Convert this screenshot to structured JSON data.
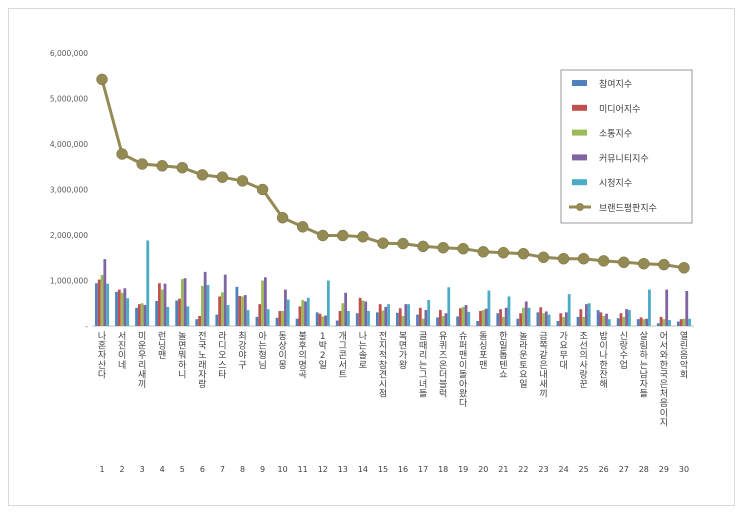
{
  "chart_data": {
    "type": "bar",
    "title": "",
    "xlabel": "",
    "ylabel": "",
    "ylim": [
      0,
      6000000
    ],
    "yticks": [
      "-",
      "1,000,000",
      "2,000,000",
      "3,000,000",
      "4,000,000",
      "5,000,000",
      "6,000,000"
    ],
    "grid": false,
    "legend_position": "top-right",
    "categories": [
      "나혼자산다",
      "서진이네",
      "미운우리새끼",
      "런닝맨",
      "놀면뭐하니",
      "전국노래자랑",
      "라디오스타",
      "최강야구",
      "아는형님",
      "동상이몽",
      "불후의명곡",
      "1박2일",
      "개그콘서트",
      "나는솔로",
      "전지적참견시점",
      "복면가왕",
      "골때리는그녀들",
      "유퀴즈온더블럭",
      "슈퍼맨이돌아왔다",
      "돌싱포맨",
      "한일톱텐쇼",
      "놀라운토요일",
      "금쪽같은내새끼",
      "가요무대",
      "조선의사랑꾼",
      "밥이나한잔해",
      "신랑수업",
      "살림하는남자들",
      "어서와한국은처음이지",
      "열린음악회"
    ],
    "numbers": [
      "1",
      "2",
      "3",
      "4",
      "5",
      "6",
      "7",
      "8",
      "9",
      "10",
      "11",
      "12",
      "13",
      "14",
      "15",
      "16",
      "17",
      "18",
      "19",
      "20",
      "21",
      "22",
      "23",
      "24",
      "25",
      "26",
      "27",
      "28",
      "29",
      "30"
    ],
    "series": [
      {
        "name": "참여지수",
        "color": "#4f81bd",
        "values": [
          940000,
          750000,
          400000,
          550000,
          560000,
          150000,
          250000,
          860000,
          200000,
          180000,
          160000,
          300000,
          120000,
          280000,
          300000,
          290000,
          250000,
          190000,
          210000,
          110000,
          280000,
          160000,
          300000,
          110000,
          200000,
          350000,
          170000,
          150000,
          60000,
          100000
        ]
      },
      {
        "name": "미디어지수",
        "color": "#c0504d",
        "values": [
          1020000,
          800000,
          480000,
          940000,
          600000,
          220000,
          650000,
          660000,
          480000,
          330000,
          430000,
          270000,
          330000,
          620000,
          480000,
          390000,
          400000,
          350000,
          390000,
          330000,
          370000,
          280000,
          410000,
          280000,
          370000,
          300000,
          280000,
          190000,
          200000,
          150000
        ]
      },
      {
        "name": "소통지수",
        "color": "#9bbb59",
        "values": [
          1120000,
          730000,
          500000,
          800000,
          1030000,
          880000,
          740000,
          650000,
          1000000,
          330000,
          570000,
          210000,
          500000,
          560000,
          340000,
          220000,
          160000,
          220000,
          420000,
          350000,
          200000,
          400000,
          280000,
          200000,
          200000,
          220000,
          200000,
          150000,
          150000,
          160000
        ]
      },
      {
        "name": "커뮤니티지수",
        "color": "#8064a2",
        "values": [
          1470000,
          830000,
          460000,
          930000,
          1050000,
          1190000,
          1130000,
          680000,
          1070000,
          800000,
          540000,
          230000,
          730000,
          540000,
          420000,
          480000,
          350000,
          280000,
          460000,
          380000,
          400000,
          540000,
          320000,
          300000,
          480000,
          270000,
          370000,
          160000,
          800000,
          770000
        ]
      },
      {
        "name": "시청지수",
        "color": "#4bacc6",
        "values": [
          930000,
          610000,
          1880000,
          420000,
          430000,
          900000,
          460000,
          350000,
          370000,
          580000,
          620000,
          1000000,
          330000,
          330000,
          480000,
          480000,
          570000,
          850000,
          310000,
          780000,
          650000,
          400000,
          250000,
          700000,
          500000,
          150000,
          350000,
          800000,
          130000,
          160000
        ]
      },
      {
        "name": "브랜드평판지수",
        "color": "#948a54",
        "values": [
          5420000,
          3780000,
          3560000,
          3520000,
          3480000,
          3320000,
          3270000,
          3190000,
          3000000,
          2380000,
          2180000,
          1990000,
          1990000,
          1960000,
          1820000,
          1810000,
          1750000,
          1720000,
          1700000,
          1630000,
          1610000,
          1590000,
          1510000,
          1480000,
          1480000,
          1430000,
          1400000,
          1370000,
          1350000,
          1280000
        ]
      }
    ]
  }
}
